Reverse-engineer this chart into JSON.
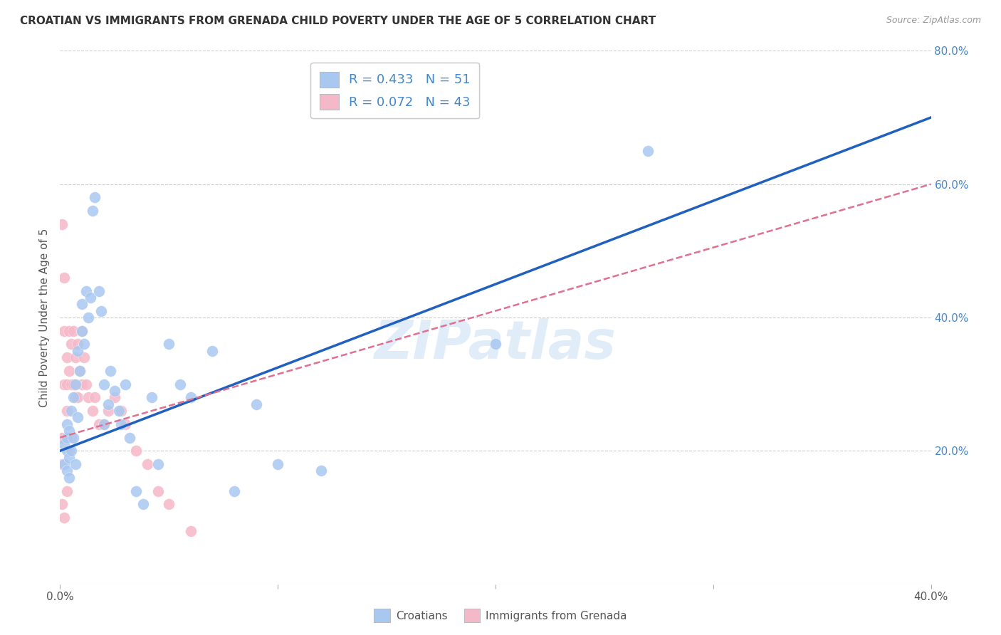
{
  "title": "CROATIAN VS IMMIGRANTS FROM GRENADA CHILD POVERTY UNDER THE AGE OF 5 CORRELATION CHART",
  "source": "Source: ZipAtlas.com",
  "ylabel": "Child Poverty Under the Age of 5",
  "xlim": [
    0.0,
    0.4
  ],
  "ylim": [
    0.0,
    0.8
  ],
  "grid_color": "#cccccc",
  "blue_color": "#a8c8f0",
  "pink_color": "#f5b8c8",
  "blue_line_color": "#2060c0",
  "pink_line_color": "#e07090",
  "ytick_color": "#4488cc",
  "legend_blue_label": "R = 0.433   N = 51",
  "legend_pink_label": "R = 0.072   N = 43",
  "croatian_label": "Croatians",
  "grenada_label": "Immigrants from Grenada",
  "watermark": "ZIPatlas",
  "blue_scatter_x": [
    0.002,
    0.002,
    0.003,
    0.003,
    0.003,
    0.003,
    0.004,
    0.004,
    0.004,
    0.005,
    0.005,
    0.006,
    0.006,
    0.007,
    0.007,
    0.008,
    0.008,
    0.009,
    0.01,
    0.01,
    0.011,
    0.012,
    0.013,
    0.014,
    0.015,
    0.016,
    0.018,
    0.019,
    0.02,
    0.02,
    0.022,
    0.023,
    0.025,
    0.027,
    0.028,
    0.03,
    0.032,
    0.035,
    0.038,
    0.042,
    0.045,
    0.05,
    0.055,
    0.06,
    0.07,
    0.08,
    0.09,
    0.1,
    0.12,
    0.2,
    0.27
  ],
  "blue_scatter_y": [
    0.21,
    0.18,
    0.22,
    0.2,
    0.17,
    0.24,
    0.19,
    0.16,
    0.23,
    0.26,
    0.2,
    0.28,
    0.22,
    0.3,
    0.18,
    0.35,
    0.25,
    0.32,
    0.42,
    0.38,
    0.36,
    0.44,
    0.4,
    0.43,
    0.56,
    0.58,
    0.44,
    0.41,
    0.3,
    0.24,
    0.27,
    0.32,
    0.29,
    0.26,
    0.24,
    0.3,
    0.22,
    0.14,
    0.12,
    0.28,
    0.18,
    0.36,
    0.3,
    0.28,
    0.35,
    0.14,
    0.27,
    0.18,
    0.17,
    0.36,
    0.65
  ],
  "pink_scatter_x": [
    0.001,
    0.001,
    0.001,
    0.001,
    0.002,
    0.002,
    0.002,
    0.002,
    0.003,
    0.003,
    0.003,
    0.003,
    0.004,
    0.004,
    0.004,
    0.005,
    0.005,
    0.005,
    0.006,
    0.006,
    0.007,
    0.007,
    0.008,
    0.008,
    0.009,
    0.01,
    0.01,
    0.011,
    0.012,
    0.013,
    0.015,
    0.016,
    0.018,
    0.02,
    0.022,
    0.025,
    0.028,
    0.03,
    0.035,
    0.04,
    0.045,
    0.05,
    0.06
  ],
  "pink_scatter_y": [
    0.54,
    0.22,
    0.18,
    0.12,
    0.46,
    0.38,
    0.3,
    0.1,
    0.34,
    0.3,
    0.26,
    0.14,
    0.38,
    0.32,
    0.2,
    0.36,
    0.3,
    0.22,
    0.38,
    0.3,
    0.34,
    0.28,
    0.36,
    0.28,
    0.32,
    0.38,
    0.3,
    0.34,
    0.3,
    0.28,
    0.26,
    0.28,
    0.24,
    0.24,
    0.26,
    0.28,
    0.26,
    0.24,
    0.2,
    0.18,
    0.14,
    0.12,
    0.08
  ],
  "blue_line_x": [
    0.0,
    0.4
  ],
  "blue_line_y": [
    0.2,
    0.7
  ],
  "pink_line_x": [
    0.0,
    0.4
  ],
  "pink_line_y": [
    0.22,
    0.6
  ]
}
